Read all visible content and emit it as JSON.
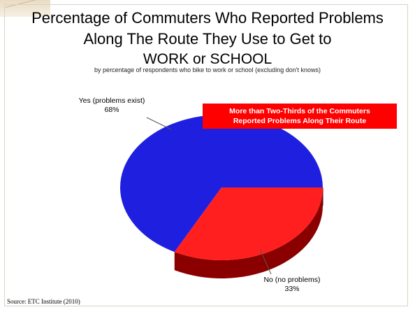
{
  "title_lines": [
    "Percentage of Commuters Who Reported Problems",
    "Along The Route They Use to Get to",
    "WORK or SCHOOL"
  ],
  "subtitle": "by percentage of respondents who bike to work or school (excluding don't knows)",
  "callout_lines": [
    "More than Two-Thirds of the Commuters",
    "Reported Problems Along Their Route"
  ],
  "callout_color": "#ff0000",
  "source": "Source:  ETC Institute (2010)",
  "chart_data": {
    "type": "pie",
    "title": "Percentage of Commuters Who Reported Problems Along The Route They Use to Get to WORK or SCHOOL",
    "slices": [
      {
        "label": "Yes (problems exist)",
        "value_label": "68%",
        "value": 68,
        "color": "#1f1fe0",
        "side_color": "#0b0b7a"
      },
      {
        "label": "No (no problems)",
        "value_label": "33%",
        "value": 33,
        "color": "#ff1f1f",
        "side_color": "#8a0000"
      }
    ],
    "style": "3d"
  }
}
